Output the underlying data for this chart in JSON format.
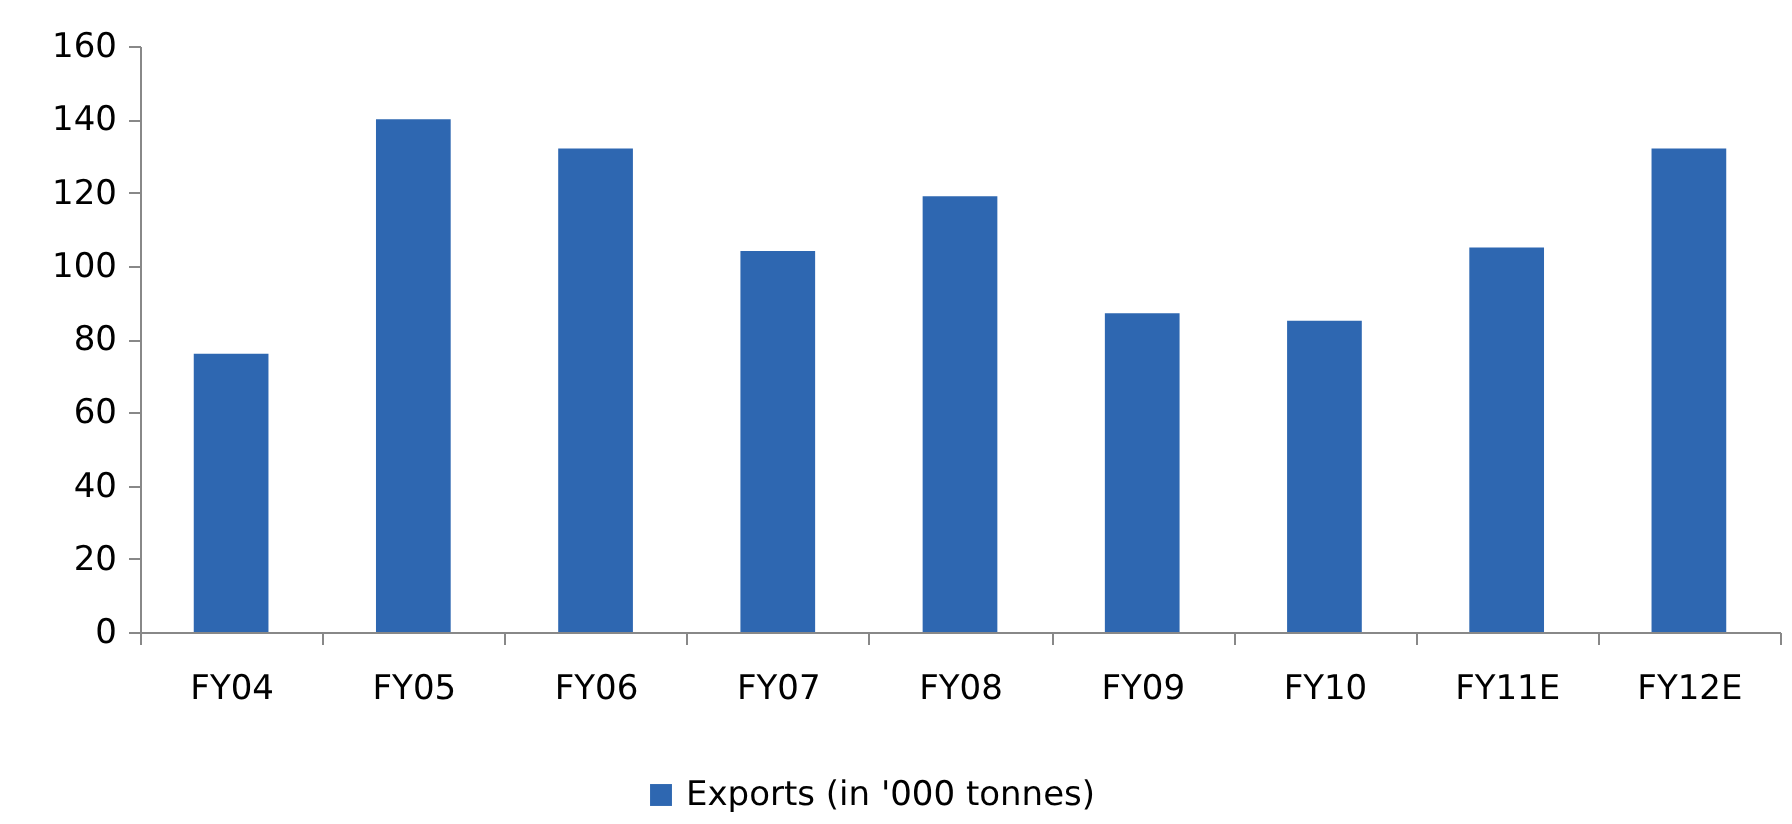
{
  "chart_data": {
    "type": "bar",
    "categories": [
      "FY04",
      "FY05",
      "FY06",
      "FY07",
      "FY08",
      "FY09",
      "FY10",
      "FY11E",
      "FY12E"
    ],
    "series": [
      {
        "name": "Exports (in '000 tonnes)",
        "color": "#2e67b1",
        "values": [
          76,
          140,
          132,
          104,
          119,
          87,
          85,
          105,
          132
        ]
      }
    ],
    "ylim": [
      0,
      160
    ],
    "yticks": [
      0,
      20,
      40,
      60,
      80,
      100,
      120,
      140,
      160
    ],
    "grid": false,
    "legend": "bottom"
  }
}
